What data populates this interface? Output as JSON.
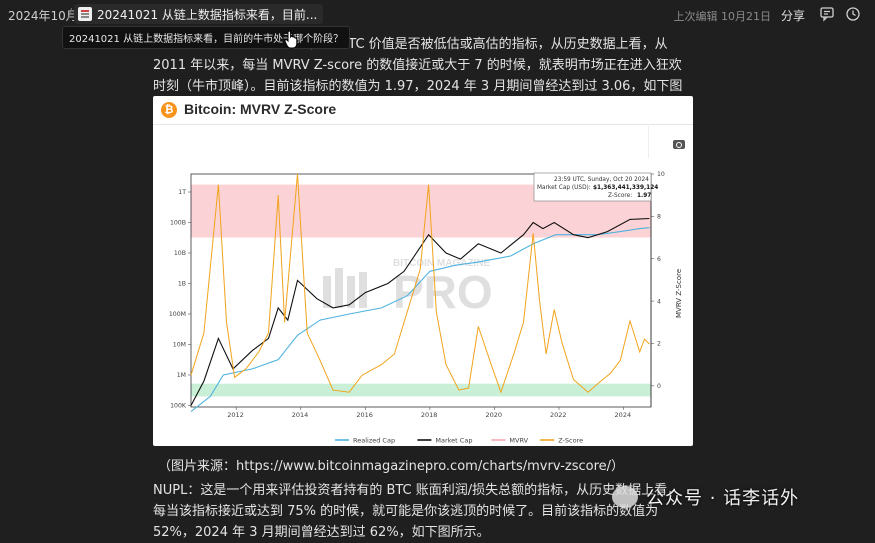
{
  "topbar": {
    "breadcrumb": "2024年10月",
    "separator": "/",
    "doc_title": "20241021 从链上数据指标来看，目前...",
    "last_edit": "上次编辑 10月21日",
    "share_label": "分享",
    "tooltip": "20241021 从链上数据指标来看，目前的牛市处于哪个阶段？",
    "icons": [
      "comment-icon",
      "history-icon"
    ]
  },
  "article": {
    "para1": "MVRV Z-Score：这是一个衡量 BTC 价值是否被低估或高估的指标，从历史数据上看，从 2011 年以来，每当 MVRV Z-score 的数值接近或大于 7 的时候，就表明市场正在进入狂欢时刻（牛市顶峰）。目前该指标的数值为 1.97，2024 年 3 月期间曾经达到过 3.06，如下图所示。",
    "caption_prefix": "（图片来源：",
    "caption_url": "https://www.bitcoinmagazinepro.com/charts/mvrv-zscore/",
    "caption_suffix": "）",
    "para2": "NUPL：这是一个用来评估投资者持有的 BTC 账面利润/损失总额的指标，从历史数据上看，每当该指标接近或达到 75% 的时候，就可能是你该逃顶的时候了。目前该指标的数值为 52%，2024 年 3 月期间曾经达到过 62%，如下图所示。",
    "watermark": "公众号 · 话李话外"
  },
  "card": {
    "logo_glyph": "₿",
    "title": "Bitcoin: MVRV Z-Score",
    "brand_line1": "BITCOIN MAGAZINE",
    "brand_line2": "PRO"
  },
  "chart_data": {
    "type": "line",
    "title": "Bitcoin: MVRV Z-Score",
    "ylabel_right": "MVRV Z-Score",
    "x_ticks": [
      "2012",
      "2014",
      "2016",
      "2018",
      "2020",
      "2022",
      "2024"
    ],
    "y_left_ticks": [
      "100K",
      "1M",
      "10M",
      "100M",
      "1B",
      "10B",
      "100B",
      "1T"
    ],
    "y_right_ticks": [
      "0",
      "2",
      "4",
      "6",
      "8",
      "10"
    ],
    "y_right_range": [
      -1,
      10
    ],
    "legend": [
      {
        "name": "Realized Cap",
        "color": "#4fb3e0"
      },
      {
        "name": "Market Cap",
        "color": "#111111"
      },
      {
        "name": "MVRV",
        "color": "#f4a8b0"
      },
      {
        "name": "Z-Score",
        "color": "#f2a31b"
      }
    ],
    "bands": [
      {
        "name": "overvalued",
        "from": 7,
        "to": 9.5,
        "color": "#fbd3d6"
      },
      {
        "name": "undervalued",
        "from": -0.5,
        "to": 0.1,
        "color": "#c9f0d7"
      }
    ],
    "hover": {
      "date": "23:59 UTC, Sunday, Oct 20 2024",
      "market_cap_label": "Market Cap (USD):",
      "market_cap_value": "$1,363,441,339,124",
      "z_label": "Z-Score:",
      "z_value": "1.97"
    },
    "zscore": [
      [
        2010.6,
        0.5
      ],
      [
        2011.0,
        2.5
      ],
      [
        2011.45,
        9.5
      ],
      [
        2011.7,
        3.0
      ],
      [
        2011.95,
        0.4
      ],
      [
        2012.3,
        0.8
      ],
      [
        2012.7,
        1.6
      ],
      [
        2013.0,
        2.5
      ],
      [
        2013.3,
        9.0
      ],
      [
        2013.5,
        3.0
      ],
      [
        2013.9,
        10.0
      ],
      [
        2014.2,
        2.5
      ],
      [
        2014.6,
        1.2
      ],
      [
        2015.0,
        -0.2
      ],
      [
        2015.5,
        -0.3
      ],
      [
        2015.9,
        0.5
      ],
      [
        2016.5,
        1.0
      ],
      [
        2016.9,
        1.5
      ],
      [
        2017.4,
        4.0
      ],
      [
        2017.7,
        5.5
      ],
      [
        2017.96,
        9.5
      ],
      [
        2018.2,
        3.5
      ],
      [
        2018.5,
        1.0
      ],
      [
        2018.9,
        -0.2
      ],
      [
        2019.2,
        -0.1
      ],
      [
        2019.5,
        2.8
      ],
      [
        2019.9,
        1.0
      ],
      [
        2020.2,
        -0.3
      ],
      [
        2020.6,
        1.5
      ],
      [
        2020.9,
        3.0
      ],
      [
        2021.2,
        7.2
      ],
      [
        2021.4,
        4.0
      ],
      [
        2021.6,
        1.5
      ],
      [
        2021.85,
        3.6
      ],
      [
        2022.1,
        2.0
      ],
      [
        2022.45,
        0.3
      ],
      [
        2022.9,
        -0.3
      ],
      [
        2023.2,
        0.1
      ],
      [
        2023.6,
        0.6
      ],
      [
        2023.9,
        1.2
      ],
      [
        2024.2,
        3.06
      ],
      [
        2024.5,
        1.6
      ],
      [
        2024.65,
        2.2
      ],
      [
        2024.8,
        1.97
      ]
    ],
    "market_cap": [
      [
        2010.6,
        0.0
      ],
      [
        2011.0,
        0.8
      ],
      [
        2011.45,
        2.2
      ],
      [
        2011.9,
        1.2
      ],
      [
        2012.5,
        1.8
      ],
      [
        2013.0,
        2.2
      ],
      [
        2013.3,
        3.2
      ],
      [
        2013.6,
        2.8
      ],
      [
        2013.9,
        4.1
      ],
      [
        2014.5,
        3.5
      ],
      [
        2015.0,
        3.2
      ],
      [
        2015.5,
        3.3
      ],
      [
        2016.0,
        3.7
      ],
      [
        2016.7,
        4.0
      ],
      [
        2017.2,
        4.4
      ],
      [
        2017.96,
        5.6
      ],
      [
        2018.5,
        5.0
      ],
      [
        2018.95,
        4.8
      ],
      [
        2019.5,
        5.3
      ],
      [
        2020.2,
        5.0
      ],
      [
        2020.9,
        5.6
      ],
      [
        2021.2,
        6.0
      ],
      [
        2021.5,
        5.8
      ],
      [
        2021.85,
        6.0
      ],
      [
        2022.45,
        5.6
      ],
      [
        2022.9,
        5.5
      ],
      [
        2023.5,
        5.7
      ],
      [
        2024.2,
        6.1
      ],
      [
        2024.8,
        6.13
      ]
    ],
    "realized_cap": [
      [
        2010.6,
        -0.2
      ],
      [
        2011.2,
        0.3
      ],
      [
        2011.6,
        1.0
      ],
      [
        2012.5,
        1.2
      ],
      [
        2013.3,
        1.5
      ],
      [
        2013.9,
        2.3
      ],
      [
        2014.6,
        2.8
      ],
      [
        2015.5,
        3.0
      ],
      [
        2016.5,
        3.2
      ],
      [
        2017.3,
        3.6
      ],
      [
        2018.0,
        4.4
      ],
      [
        2018.8,
        4.6
      ],
      [
        2019.5,
        4.7
      ],
      [
        2020.5,
        4.9
      ],
      [
        2021.2,
        5.3
      ],
      [
        2021.9,
        5.6
      ],
      [
        2022.5,
        5.6
      ],
      [
        2023.2,
        5.6
      ],
      [
        2023.9,
        5.7
      ],
      [
        2024.5,
        5.8
      ],
      [
        2024.8,
        5.83
      ]
    ]
  }
}
